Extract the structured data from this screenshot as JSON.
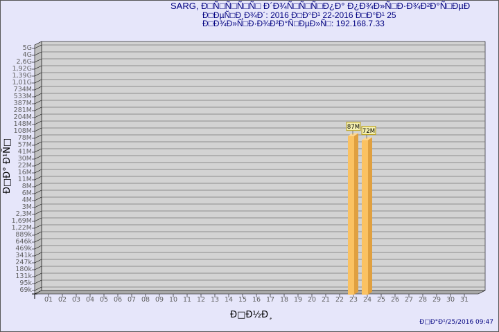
{
  "header": {
    "line1": "SARG,  Ð□Ñ□Ñ□Ñ□Ñ□ Ð´Ð¾Ñ□Ñ□Ñ□Ð¿Ð° Ð¿Ð¾Ð»Ñ□Ð·Ð¾Ð²Ð°Ñ□ÐµÐ",
    "line2": "Ð□ÐµÑ□Ð¸Ð¾Ð´: 2016 Ð□Ð°Ð¹ 22-2016 Ð□Ð°Ð¹ 25",
    "line3": "Ð□Ð¾Ð»Ñ□Ð·Ð¾Ð²Ð°Ñ□ÐµÐ»Ñ□: 192.168.7.33"
  },
  "footer": {
    "date": "Ð□Ð°Ð¹/25/2016 09:47"
  },
  "chart_data": {
    "type": "bar",
    "scale": "log",
    "xlabel": "Ð□Ð½Ð¸",
    "ylabel": "Ð□Ð° Ð¹Ñ□",
    "categories": [
      "01",
      "02",
      "03",
      "04",
      "05",
      "06",
      "07",
      "08",
      "09",
      "10",
      "11",
      "12",
      "13",
      "14",
      "15",
      "16",
      "17",
      "18",
      "19",
      "20",
      "21",
      "22",
      "23",
      "24",
      "25",
      "26",
      "27",
      "28",
      "29",
      "30",
      "31"
    ],
    "yticks": [
      "5G",
      "4G",
      "2,6G",
      "1,92G",
      "1,39G",
      "1,01G",
      "734M",
      "533M",
      "387M",
      "281M",
      "204M",
      "148M",
      "108M",
      "78M",
      "57M",
      "41M",
      "30M",
      "22M",
      "16M",
      "11M",
      "8M",
      "6M",
      "4M",
      "3M",
      "2,3M",
      "1,69M",
      "1,22M",
      "889k",
      "646k",
      "469k",
      "341k",
      "247k",
      "180k",
      "131k",
      "95k",
      "69k"
    ],
    "bars": [
      {
        "category": "23",
        "value": 87000000,
        "label": "87M"
      },
      {
        "category": "24",
        "value": 72000000,
        "label": "72M"
      }
    ],
    "grid": true,
    "colors": {
      "bar": "#fbc262",
      "bar_side": "#e0a040",
      "plot": "#d3d3d3",
      "text": "#000080",
      "tick": "#606060"
    }
  }
}
